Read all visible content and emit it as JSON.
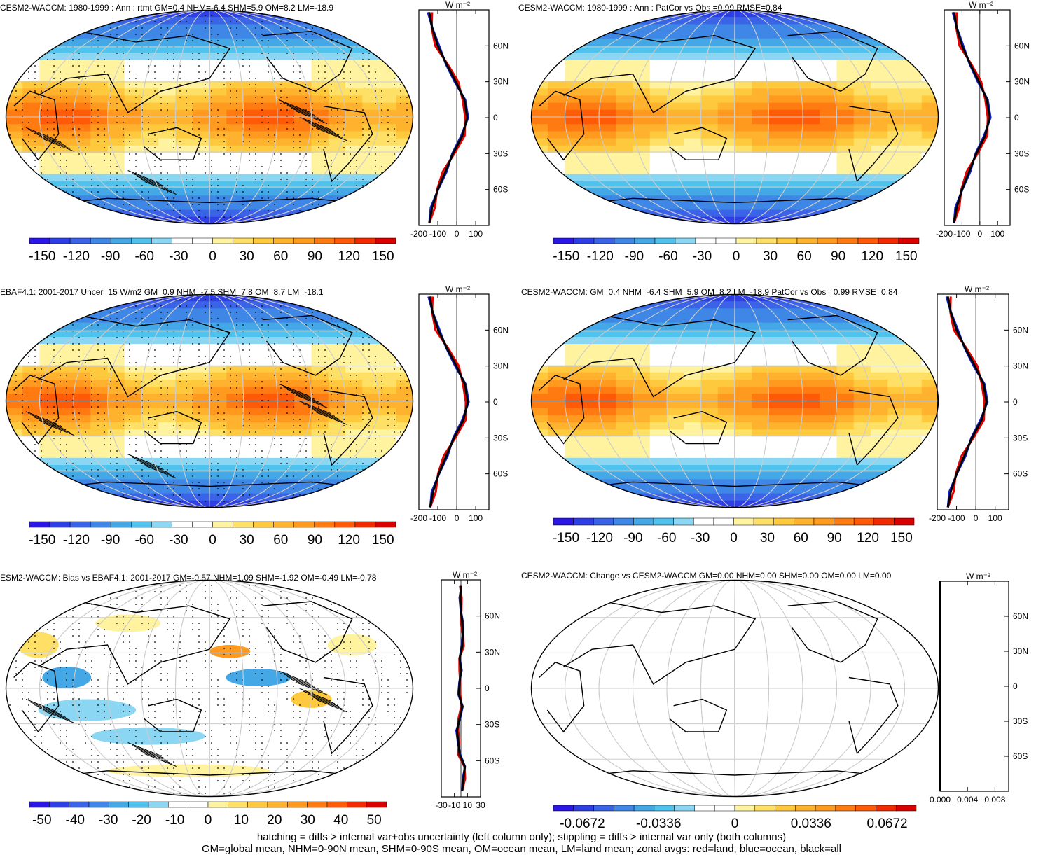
{
  "panels": [
    {
      "title": "CESM2-WACCM: 1980-1999 : Ann : rtmt GM=0.4 NHM=-6.4 SHM=5.9 OM=8.2 LM=-18.9",
      "kind": "model",
      "stipple": true,
      "hatch": true,
      "colorbar_ticks": [
        "-150",
        "-120",
        "-90",
        "-60",
        "-30",
        "0",
        "30",
        "60",
        "90",
        "120",
        "150"
      ],
      "zonal_xticks": [
        "-200",
        "-100",
        "0",
        "100"
      ],
      "zonal_xrange": [
        -200,
        170
      ],
      "zonal_yticks": [
        "60N",
        "30N",
        "0",
        "30S",
        "60S"
      ],
      "zonal_unit": "W m⁻²"
    },
    {
      "title": "CESM2-WACCM: 1980-1999 : Ann : PatCor vs Obs =0.99 RMSE=0.84",
      "kind": "model",
      "stipple": false,
      "hatch": false,
      "colorbar_ticks": [
        "-150",
        "-120",
        "-90",
        "-60",
        "-30",
        "0",
        "30",
        "60",
        "90",
        "120",
        "150"
      ],
      "zonal_xticks": [
        "-200",
        "-100",
        "0",
        "100"
      ],
      "zonal_xrange": [
        -200,
        170
      ],
      "zonal_yticks": [
        "60N",
        "30N",
        "0",
        "30S",
        "60S"
      ],
      "zonal_unit": "W m⁻²"
    },
    {
      "title": "EBAF4.1: 2001-2017 Uncer=15 W/m2 GM=0.9 NHM=-7.5 SHM=7.8 OM=8.7 LM=-18.1",
      "kind": "model",
      "stipple": true,
      "hatch": true,
      "colorbar_ticks": [
        "-150",
        "-120",
        "-90",
        "-60",
        "-30",
        "0",
        "30",
        "60",
        "90",
        "120",
        "150"
      ],
      "zonal_xticks": [
        "-200",
        "-100",
        "0",
        "100"
      ],
      "zonal_xrange": [
        -200,
        170
      ],
      "zonal_yticks": [
        "60N",
        "30N",
        "0",
        "30S",
        "60S"
      ],
      "zonal_unit": "W m⁻²"
    },
    {
      "title": "CESM2-WACCM: GM=0.4 NHM=-6.4 SHM=5.9 OM=8.2 LM=-18.9 PatCor vs Obs =0.99 RMSE=0.84",
      "kind": "model",
      "stipple": false,
      "hatch": false,
      "colorbar_ticks": [
        "-150",
        "-120",
        "-90",
        "-60",
        "-30",
        "0",
        "30",
        "60",
        "90",
        "120",
        "150"
      ],
      "zonal_xticks": [
        "-200",
        "-100",
        "0",
        "100"
      ],
      "zonal_xrange": [
        -200,
        170
      ],
      "zonal_yticks": [
        "60N",
        "30N",
        "0",
        "30S",
        "60S"
      ],
      "zonal_unit": "W m⁻²"
    },
    {
      "title": "ESM2-WACCM: Bias vs EBAF4.1: 2001-2017 GM=-0.57 NHM=1.09 SHM=-1.92 OM=-0.49 LM=-0.78",
      "kind": "bias",
      "stipple": true,
      "hatch": true,
      "colorbar_ticks": [
        "-50",
        "-40",
        "-30",
        "-20",
        "-10",
        "0",
        "10",
        "20",
        "30",
        "40",
        "50"
      ],
      "zonal_xticks": [
        "-30",
        "-10",
        "10",
        "30"
      ],
      "zonal_xrange": [
        -30,
        30
      ],
      "zonal_yticks": [
        "60N",
        "30N",
        "0",
        "30S",
        "60S"
      ],
      "zonal_unit": "W m⁻²"
    },
    {
      "title": "CESM2-WACCM: Change vs CESM2-WACCM GM=0.00 NHM=0.00 SHM=0.00 OM=0.00 LM=0.00",
      "kind": "change",
      "stipple": false,
      "hatch": false,
      "colorbar_ticks": [
        "-0.0672",
        "-0.0336",
        "0",
        "0.0336",
        "0.0672"
      ],
      "zonal_xticks": [
        "0.000",
        "0.004",
        "0.008"
      ],
      "zonal_xrange": [
        0,
        0.01
      ],
      "zonal_yticks": [
        "60N",
        "30N",
        "0",
        "30S",
        "60S"
      ],
      "zonal_unit": "W m⁻²"
    }
  ],
  "colors": {
    "scale": [
      "#2a17e6",
      "#2f3fe6",
      "#3a63e8",
      "#3f87e6",
      "#44a8e6",
      "#4fc2ee",
      "#8bd6f2",
      "#ffffff",
      "#ffffff",
      "#fff3a0",
      "#ffe066",
      "#ffc93d",
      "#ffb22e",
      "#ff9a1e",
      "#ff7a10",
      "#ff5a08",
      "#f22a00",
      "#d90000"
    ],
    "land_line": "#e60000",
    "ocean_line": "#1020d0",
    "all_line": "#000000"
  },
  "chart_data": [
    {
      "type": "heatmap",
      "title": "CESM2-WACCM: 1980-1999 : Ann : rtmt GM=0.4 NHM=-6.4 SHM=5.9 OM=8.2 LM=-18.9",
      "zonal_mean_lines": [
        {
          "lat": [
            -88,
            -75,
            -60,
            -45,
            -30,
            -15,
            0,
            15,
            30,
            45,
            60,
            75,
            88
          ],
          "all": [
            -145,
            -130,
            -100,
            -60,
            -20,
            30,
            55,
            40,
            -5,
            -55,
            -100,
            -130,
            -145
          ]
        }
      ]
    },
    {
      "type": "heatmap",
      "title": "CESM2-WACCM: 1980-1999 : Ann : PatCor vs Obs =0.99 RMSE=0.84",
      "zonal_mean_lines": [
        {
          "lat": [
            -88,
            -75,
            -60,
            -45,
            -30,
            -15,
            0,
            15,
            30,
            45,
            60,
            75,
            88
          ],
          "all": [
            -145,
            -130,
            -100,
            -60,
            -20,
            30,
            55,
            40,
            -5,
            -55,
            -100,
            -130,
            -145
          ]
        }
      ]
    },
    {
      "type": "heatmap",
      "title": "EBAF4.1: 2001-2017 Uncer=15 W/m2 GM=0.9 NHM=-7.5 SHM=7.8 OM=8.7 LM=-18.1",
      "zonal_mean_lines": [
        {
          "lat": [
            -88,
            -75,
            -60,
            -45,
            -30,
            -15,
            0,
            15,
            30,
            45,
            60,
            75,
            88
          ],
          "all": [
            -140,
            -125,
            -95,
            -55,
            -15,
            35,
            58,
            42,
            -2,
            -52,
            -98,
            -128,
            -142
          ]
        }
      ]
    },
    {
      "type": "heatmap",
      "title": "CESM2-WACCM: GM=0.4 NHM=-6.4 SHM=5.9 OM=8.2 LM=-18.9 PatCor vs Obs =0.99 RMSE=0.84",
      "zonal_mean_lines": [
        {
          "lat": [
            -88,
            -75,
            -60,
            -45,
            -30,
            -15,
            0,
            15,
            30,
            45,
            60,
            75,
            88
          ],
          "all": [
            -145,
            -130,
            -100,
            -60,
            -20,
            30,
            55,
            40,
            -5,
            -55,
            -100,
            -130,
            -145
          ]
        }
      ]
    },
    {
      "type": "heatmap",
      "title": "ESM2-WACCM: Bias vs EBAF4.1: 2001-2017 GM=-0.57 NHM=1.09 SHM=-1.92 OM=-0.49 LM=-0.78",
      "zonal_mean_lines": [
        {
          "lat": [
            -85,
            -75,
            -65,
            -55,
            -45,
            -35,
            -25,
            -15,
            -5,
            5,
            15,
            25,
            35,
            45,
            55,
            65,
            75,
            85
          ],
          "all": [
            2,
            4,
            6,
            -2,
            -4,
            -6,
            -2,
            2,
            -3,
            -2,
            0,
            -2,
            2,
            3,
            2,
            0,
            -1,
            0
          ]
        }
      ]
    },
    {
      "type": "heatmap",
      "title": "CESM2-WACCM: Change vs CESM2-WACCM GM=0.00 NHM=0.00 SHM=0.00 OM=0.00 LM=0.00",
      "zonal_mean_lines": [
        {
          "lat": [
            -90,
            90
          ],
          "all": [
            0,
            0
          ]
        }
      ]
    }
  ],
  "footer": {
    "line1": "hatching = diffs > internal var+obs uncertainty (left column only); stippling = diffs > internal var only (both columns)",
    "line2": "GM=global mean, NHM=0-90N mean, SHM=0-90S mean, OM=ocean mean, LM=land mean; zonal avgs: red=land, blue=ocean, black=all"
  }
}
